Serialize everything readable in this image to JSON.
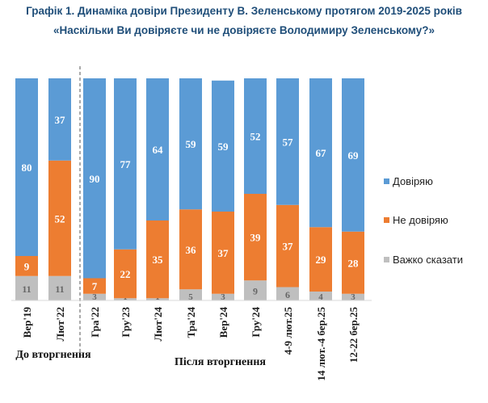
{
  "title_line1": "Графік 1. Динаміка довіри Президенту В. Зеленському протягом 2019-2025 років",
  "title_line2": "«Наскільки Ви довіряєте чи не довіряєте Володимиру Зеленському?»",
  "colors": {
    "trust": "#5b9bd5",
    "distrust": "#ed7d31",
    "hard": "#bfbfbf"
  },
  "groups": {
    "before": "До вторгнення",
    "after": "Після вторгнення"
  },
  "legend": [
    "Довіряю",
    "Не довіряю",
    "Важко сказати"
  ],
  "chart_data": {
    "type": "bar",
    "stacked": true,
    "categories": [
      "Вер'19",
      "Лют'22",
      "Гра'22",
      "Гру'23",
      "Лют'24",
      "Тра'24",
      "Вер'24",
      "Гру'24",
      "4-9 лют.25",
      "14 лют.-4 бер.25",
      "12-22 бер.25"
    ],
    "series": [
      {
        "name": "Довіряю",
        "values": [
          80,
          37,
          90,
          77,
          64,
          59,
          59,
          52,
          57,
          67,
          69
        ]
      },
      {
        "name": "Не довіряю",
        "values": [
          9,
          52,
          7,
          22,
          35,
          36,
          37,
          39,
          37,
          29,
          28
        ]
      },
      {
        "name": "Важко сказати",
        "values": [
          11,
          11,
          3,
          1,
          1,
          5,
          3,
          9,
          6,
          4,
          3
        ]
      }
    ],
    "ylim": [
      0,
      100
    ],
    "grid": false,
    "legend_position": "right"
  }
}
